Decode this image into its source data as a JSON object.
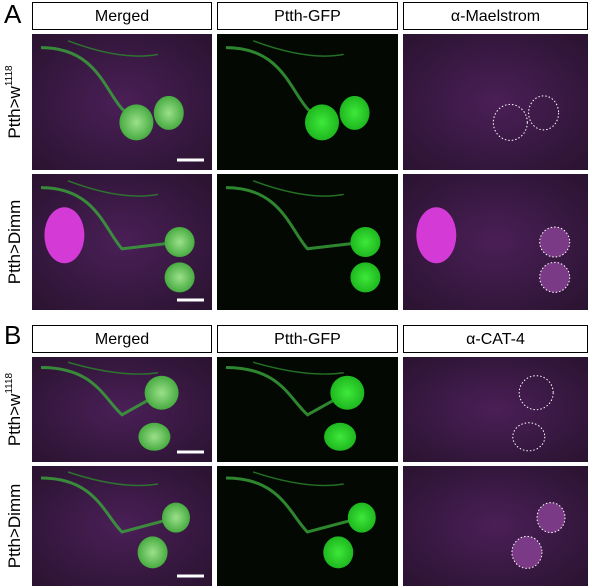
{
  "panels": [
    {
      "label": "A",
      "columns": [
        "Merged",
        "Ptth-GFP",
        "α-Maelstrom"
      ],
      "rows": [
        {
          "text": "Ptth>w",
          "sup": "1118"
        },
        {
          "text": "Ptth>Dimm"
        }
      ]
    },
    {
      "label": "B",
      "columns": [
        "Merged",
        "Ptth-GFP",
        "α-CAT-4"
      ],
      "rows": [
        {
          "text": "Ptth>w",
          "sup": "1118"
        },
        {
          "text": "Ptth>Dimm"
        }
      ]
    }
  ]
}
